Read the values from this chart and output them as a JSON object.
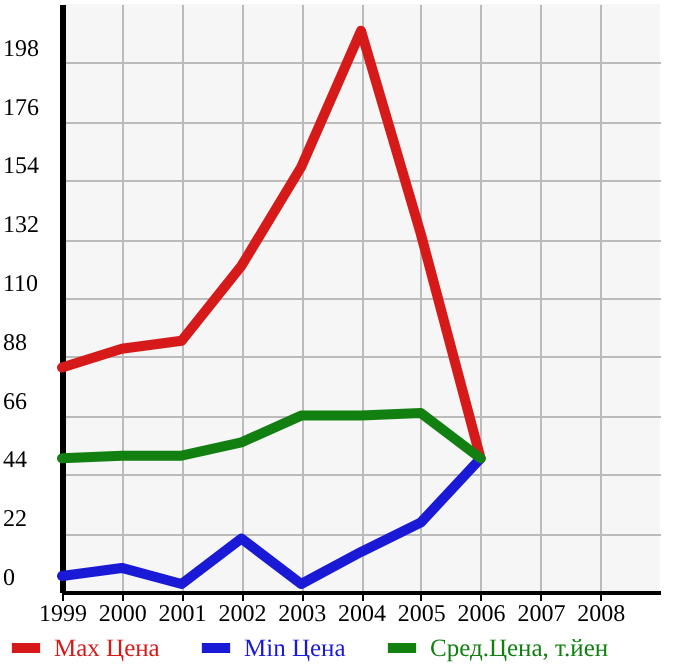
{
  "chart_data": {
    "type": "line",
    "x": [
      1999,
      2000,
      2001,
      2002,
      2003,
      2004,
      2005,
      2006
    ],
    "xlim": [
      1999,
      2009
    ],
    "xticks": [
      1999,
      2000,
      2001,
      2002,
      2003,
      2004,
      2005,
      2006,
      2007,
      2008
    ],
    "ylim": [
      0,
      220
    ],
    "yticks": [
      0,
      22,
      44,
      66,
      88,
      110,
      132,
      154,
      176,
      198
    ],
    "grid": true,
    "legend": "bottom",
    "line_style": "solid",
    "series": [
      {
        "name": "Max Цена",
        "color": "#d61a1a",
        "values": [
          84,
          91,
          94,
          122,
          159,
          210,
          134,
          50
        ]
      },
      {
        "name": "Min Цена",
        "color": "#1a1ad6",
        "values": [
          6,
          9,
          3,
          20,
          3,
          15,
          26,
          50
        ]
      },
      {
        "name": "Сред.Цена, т.йен",
        "color": "#118011",
        "values": [
          50,
          51,
          51,
          56,
          66,
          66,
          67,
          50
        ]
      }
    ]
  }
}
